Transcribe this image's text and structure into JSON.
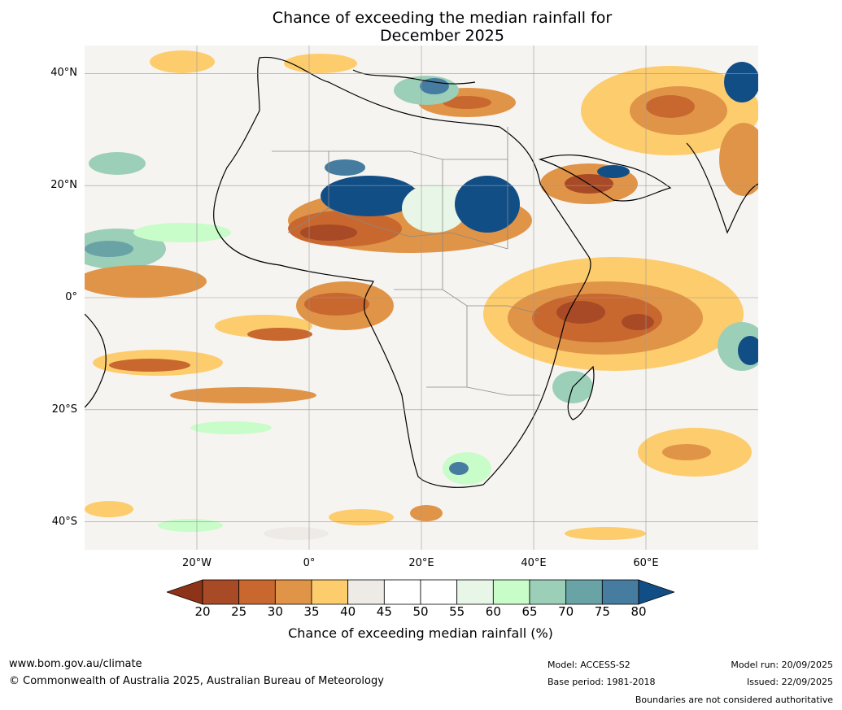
{
  "title": {
    "line1": "Chance of exceeding the median rainfall for",
    "line2": "December 2025"
  },
  "map": {
    "lat_labels": [
      "40°N",
      "20°N",
      "0°",
      "20°S",
      "40°S"
    ],
    "lon_labels": [
      "20°W",
      "0°",
      "20°E",
      "40°E",
      "60°E"
    ],
    "lat_values": [
      40,
      20,
      0,
      -20,
      -40
    ],
    "lon_values": [
      -20,
      0,
      20,
      40,
      60
    ],
    "extent": {
      "lon_min": -40,
      "lon_max": 80,
      "lat_min": -45,
      "lat_max": 45
    }
  },
  "colorbar": {
    "ticks": [
      "20",
      "25",
      "30",
      "35",
      "40",
      "45",
      "50",
      "55",
      "60",
      "65",
      "70",
      "75",
      "80"
    ],
    "colors": [
      "#a84a26",
      "#c8682f",
      "#e09448",
      "#fdcc6c",
      "#eeebe6",
      "#ffffff",
      "#ffffff",
      "#e8f6e8",
      "#c8fcc8",
      "#9ccfb8",
      "#6aa3a6",
      "#467ca0"
    ],
    "under_color": "#8c3318",
    "over_color": "#124e86",
    "label": "Chance of exceeding median rainfall (%)"
  },
  "footer": {
    "site": "www.bom.gov.au/climate",
    "copyright": "© Commonwealth of Australia 2025, Australian Bureau of Meteorology",
    "model": "Model: ACCESS-S2",
    "base_period": "Base period: 1981-2018",
    "model_run": "Model run: 20/09/2025",
    "issued": "Issued: 22/09/2025",
    "disclaimer": "Boundaries are not considered authoritative"
  }
}
